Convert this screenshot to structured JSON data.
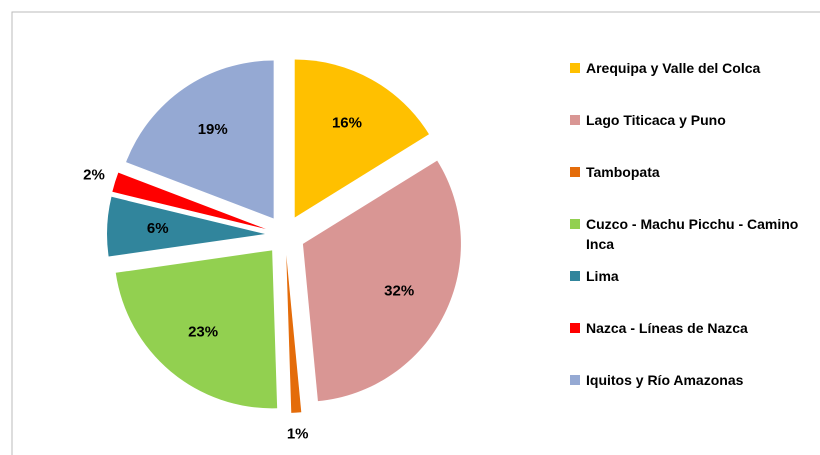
{
  "chart_data": {
    "type": "pie",
    "categories": [
      "Arequipa y Valle del Colca",
      "Lago Titicaca y Puno",
      "Tambopata",
      "Cuzco - Machu Picchu - Camino Inca",
      "Lima",
      "Nazca - Líneas de Nazca",
      "Iquitos y Río Amazonas"
    ],
    "values": [
      16,
      32,
      1,
      23,
      6,
      2,
      19
    ],
    "value_labels": [
      "16%",
      "32%",
      "1%",
      "23%",
      "6%",
      "2%",
      "19%"
    ],
    "colors": [
      "#ffc000",
      "#d99694",
      "#e46c0a",
      "#92d050",
      "#31859c",
      "#ff0000",
      "#95a9d3"
    ],
    "legend": "right"
  }
}
